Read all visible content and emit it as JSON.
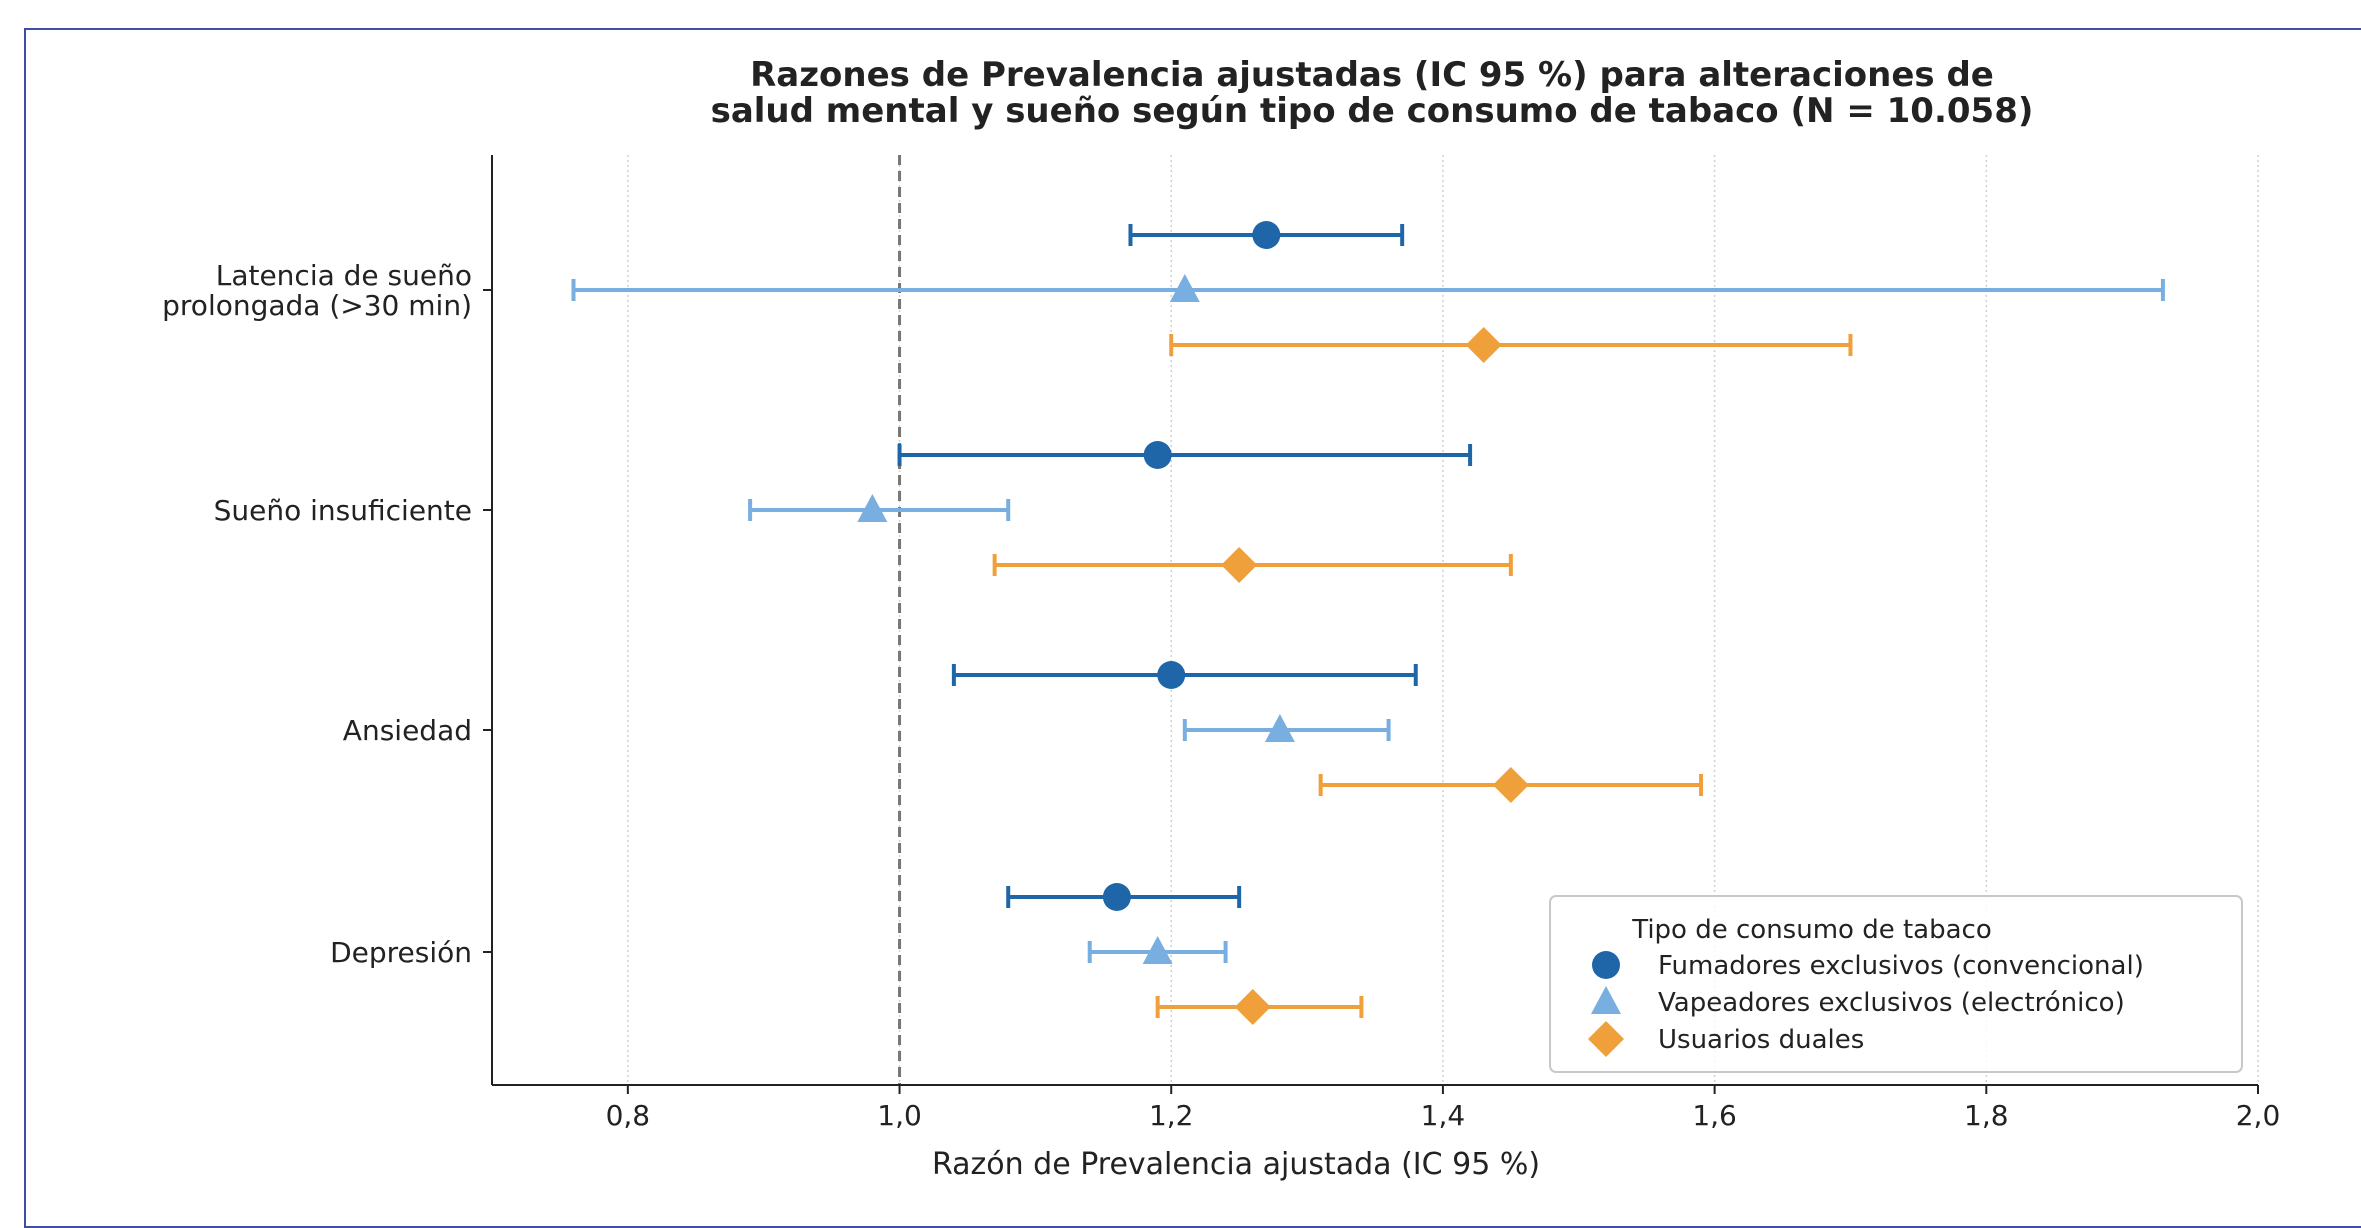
{
  "chart_data": {
    "type": "forest",
    "title_lines": [
      "Razones de Prevalencia ajustadas (IC 95 %) para alteraciones de",
      "salud mental y sueño según tipo de consumo de tabaco (N = 10.058)"
    ],
    "xlabel": "Razón de Prevalencia ajustada (IC 95 %)",
    "xlim": [
      0.7,
      2.0
    ],
    "xticks": [
      "0,8",
      "1,0",
      "1,2",
      "1,4",
      "1,6",
      "1,8",
      "2,0"
    ],
    "xtick_values": [
      0.8,
      1.0,
      1.2,
      1.4,
      1.6,
      1.8,
      2.0
    ],
    "reference_line": 1.0,
    "grid": "vertical dotted",
    "categories": [
      [
        "Latencia de sueño",
        "prolongada (>30 min)"
      ],
      [
        "Sueño insuficiente"
      ],
      [
        "Ansiedad"
      ],
      [
        "Depresión"
      ]
    ],
    "series": [
      {
        "name": "Fumadores exclusivos (convencional)",
        "marker": "circle",
        "color": "#1f66a8",
        "values": [
          {
            "est": 1.27,
            "lo": 1.17,
            "hi": 1.37
          },
          {
            "est": 1.19,
            "lo": 1.0,
            "hi": 1.42
          },
          {
            "est": 1.2,
            "lo": 1.04,
            "hi": 1.38
          },
          {
            "est": 1.16,
            "lo": 1.08,
            "hi": 1.25
          }
        ]
      },
      {
        "name": "Vapeadores exclusivos (electrónico)",
        "marker": "triangle",
        "color": "#78aee0",
        "values": [
          {
            "est": 1.21,
            "lo": 0.76,
            "hi": 1.93
          },
          {
            "est": 0.98,
            "lo": 0.89,
            "hi": 1.08
          },
          {
            "est": 1.28,
            "lo": 1.21,
            "hi": 1.36
          },
          {
            "est": 1.19,
            "lo": 1.14,
            "hi": 1.24
          }
        ]
      },
      {
        "name": "Usuarios duales",
        "marker": "diamond",
        "color": "#f0a03a",
        "values": [
          {
            "est": 1.43,
            "lo": 1.2,
            "hi": 1.7
          },
          {
            "est": 1.25,
            "lo": 1.07,
            "hi": 1.45
          },
          {
            "est": 1.45,
            "lo": 1.31,
            "hi": 1.59
          },
          {
            "est": 1.26,
            "lo": 1.19,
            "hi": 1.34
          }
        ]
      }
    ],
    "legend": {
      "title": "Tipo de consumo de tabaco",
      "placement": "lower-right"
    }
  }
}
